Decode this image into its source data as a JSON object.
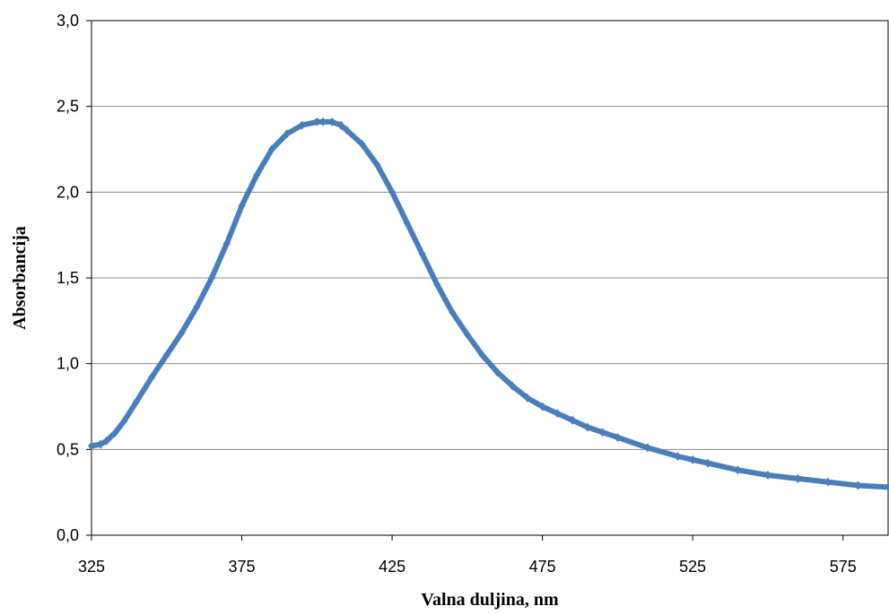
{
  "chart_data": {
    "type": "line",
    "title": "",
    "xlabel": "Valna duljina, nm",
    "ylabel": "Absorbancija",
    "xlim": [
      325,
      590
    ],
    "ylim": [
      0,
      3
    ],
    "x_ticks": [
      325,
      375,
      425,
      475,
      525,
      575
    ],
    "x_tick_labels": [
      "325",
      "375",
      "425",
      "475",
      "525",
      "575"
    ],
    "y_ticks": [
      0,
      0.5,
      1,
      1.5,
      2,
      2.5,
      3
    ],
    "y_tick_labels": [
      "0,0",
      "0,5",
      "1,0",
      "1,5",
      "2,0",
      "2,5",
      "3,0"
    ],
    "grid": "horizontal",
    "legend": "none",
    "series": [
      {
        "color": "#4a7ebb",
        "marker": "diamond",
        "x": [
          325,
          328,
          330,
          333,
          336,
          340,
          345,
          350,
          355,
          360,
          365,
          370,
          375,
          380,
          385,
          390,
          395,
          400,
          402,
          405,
          408,
          410,
          415,
          420,
          425,
          430,
          435,
          440,
          445,
          450,
          455,
          460,
          465,
          470,
          475,
          480,
          485,
          490,
          495,
          500,
          510,
          520,
          525,
          530,
          540,
          550,
          560,
          570,
          580,
          590
        ],
        "y": [
          0.52,
          0.53,
          0.55,
          0.6,
          0.67,
          0.78,
          0.92,
          1.05,
          1.18,
          1.33,
          1.5,
          1.7,
          1.92,
          2.1,
          2.25,
          2.34,
          2.39,
          2.41,
          2.41,
          2.41,
          2.39,
          2.36,
          2.28,
          2.16,
          2.0,
          1.82,
          1.64,
          1.46,
          1.3,
          1.17,
          1.05,
          0.95,
          0.87,
          0.8,
          0.75,
          0.71,
          0.67,
          0.63,
          0.6,
          0.57,
          0.51,
          0.46,
          0.44,
          0.42,
          0.38,
          0.35,
          0.33,
          0.31,
          0.29,
          0.28
        ]
      }
    ]
  }
}
